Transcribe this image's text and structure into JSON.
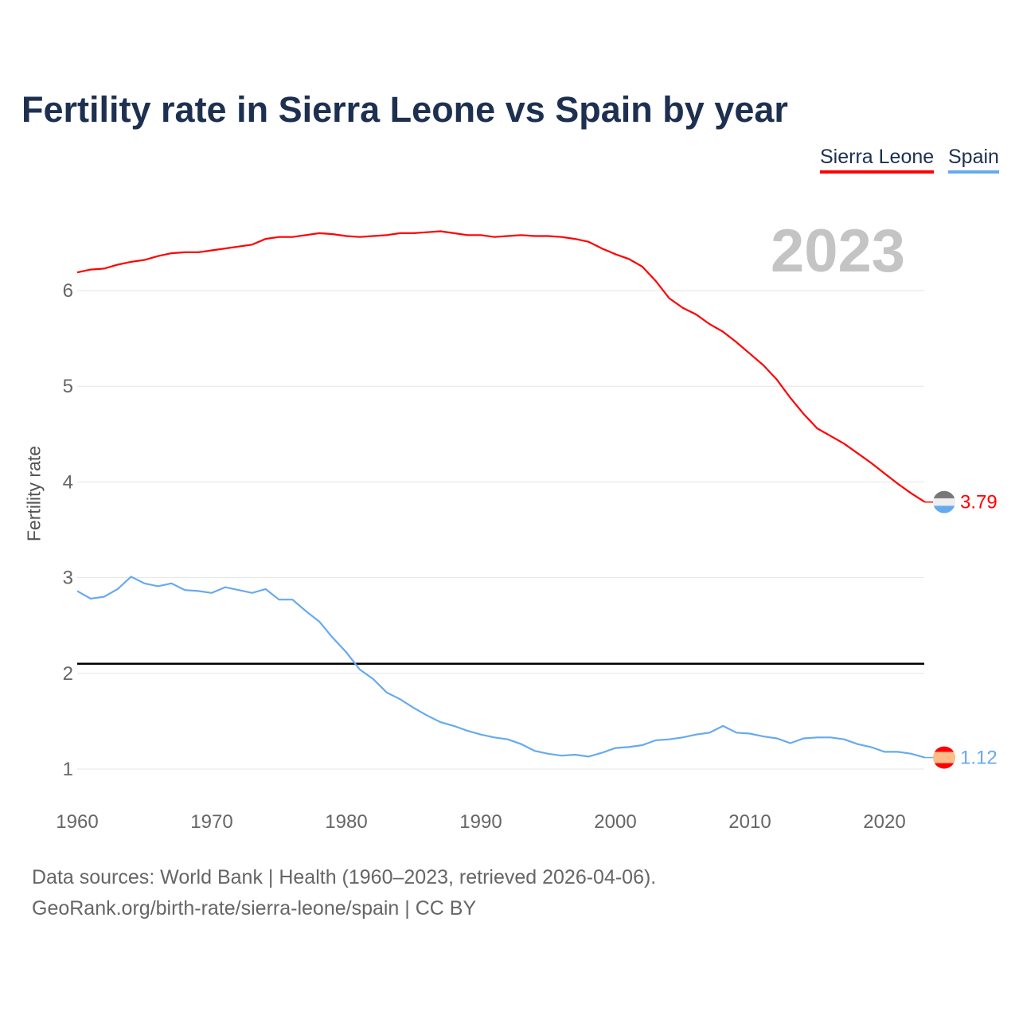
{
  "chart_data": {
    "type": "line",
    "title": "Fertility rate in Sierra Leone vs Spain by year",
    "ylabel": "Fertility rate",
    "xlabel": "",
    "xlim": [
      1960,
      2023
    ],
    "ylim": [
      0.6,
      6.8
    ],
    "x_ticks": [
      "1960",
      "1970",
      "1980",
      "1990",
      "2000",
      "2010",
      "2020"
    ],
    "y_ticks": [
      "1",
      "2",
      "3",
      "4",
      "5",
      "6"
    ],
    "grid": true,
    "legend_position": "top-right",
    "current_year": "2023",
    "reference_line": 2.1,
    "x": [
      1960,
      1961,
      1962,
      1963,
      1964,
      1965,
      1966,
      1967,
      1968,
      1969,
      1970,
      1971,
      1972,
      1973,
      1974,
      1975,
      1976,
      1977,
      1978,
      1979,
      1980,
      1981,
      1982,
      1983,
      1984,
      1985,
      1986,
      1987,
      1988,
      1989,
      1990,
      1991,
      1992,
      1993,
      1994,
      1995,
      1996,
      1997,
      1998,
      1999,
      2000,
      2001,
      2002,
      2003,
      2004,
      2005,
      2006,
      2007,
      2008,
      2009,
      2010,
      2011,
      2012,
      2013,
      2014,
      2015,
      2016,
      2017,
      2018,
      2019,
      2020,
      2021,
      2022,
      2023
    ],
    "series": [
      {
        "name": "Sierra Leone",
        "color": "#ff0000",
        "end_label": "3.79",
        "flag_colors": [
          "#777777",
          "#eeeeee",
          "#66aaee"
        ],
        "values": [
          6.19,
          6.22,
          6.23,
          6.27,
          6.3,
          6.32,
          6.36,
          6.39,
          6.4,
          6.4,
          6.42,
          6.44,
          6.46,
          6.48,
          6.54,
          6.56,
          6.56,
          6.58,
          6.6,
          6.59,
          6.57,
          6.56,
          6.57,
          6.58,
          6.6,
          6.6,
          6.61,
          6.62,
          6.6,
          6.58,
          6.58,
          6.56,
          6.57,
          6.58,
          6.57,
          6.57,
          6.56,
          6.54,
          6.51,
          6.44,
          6.38,
          6.33,
          6.25,
          6.1,
          5.92,
          5.82,
          5.75,
          5.65,
          5.57,
          5.46,
          5.34,
          5.22,
          5.07,
          4.88,
          4.71,
          4.56,
          4.48,
          4.4,
          4.3,
          4.2,
          4.09,
          3.98,
          3.88,
          3.79
        ]
      },
      {
        "name": "Spain",
        "color": "#66aaee",
        "end_label": "1.12",
        "flag_colors": [
          "#ff0000",
          "#ffbb88",
          "#ff0000"
        ],
        "values": [
          2.86,
          2.78,
          2.8,
          2.88,
          3.01,
          2.94,
          2.91,
          2.94,
          2.87,
          2.86,
          2.84,
          2.9,
          2.87,
          2.84,
          2.88,
          2.77,
          2.77,
          2.65,
          2.54,
          2.37,
          2.22,
          2.04,
          1.94,
          1.8,
          1.73,
          1.64,
          1.56,
          1.49,
          1.45,
          1.4,
          1.36,
          1.33,
          1.31,
          1.26,
          1.19,
          1.16,
          1.14,
          1.15,
          1.13,
          1.17,
          1.22,
          1.23,
          1.25,
          1.3,
          1.31,
          1.33,
          1.36,
          1.38,
          1.45,
          1.38,
          1.37,
          1.34,
          1.32,
          1.27,
          1.32,
          1.33,
          1.33,
          1.31,
          1.26,
          1.23,
          1.18,
          1.18,
          1.16,
          1.12
        ]
      }
    ]
  },
  "footer": {
    "sources": "Data sources: World Bank | Health (1960–2023, retrieved 2026-04-06).",
    "credit": "GeoRank.org/birth-rate/sierra-leone/spain | CC BY"
  }
}
